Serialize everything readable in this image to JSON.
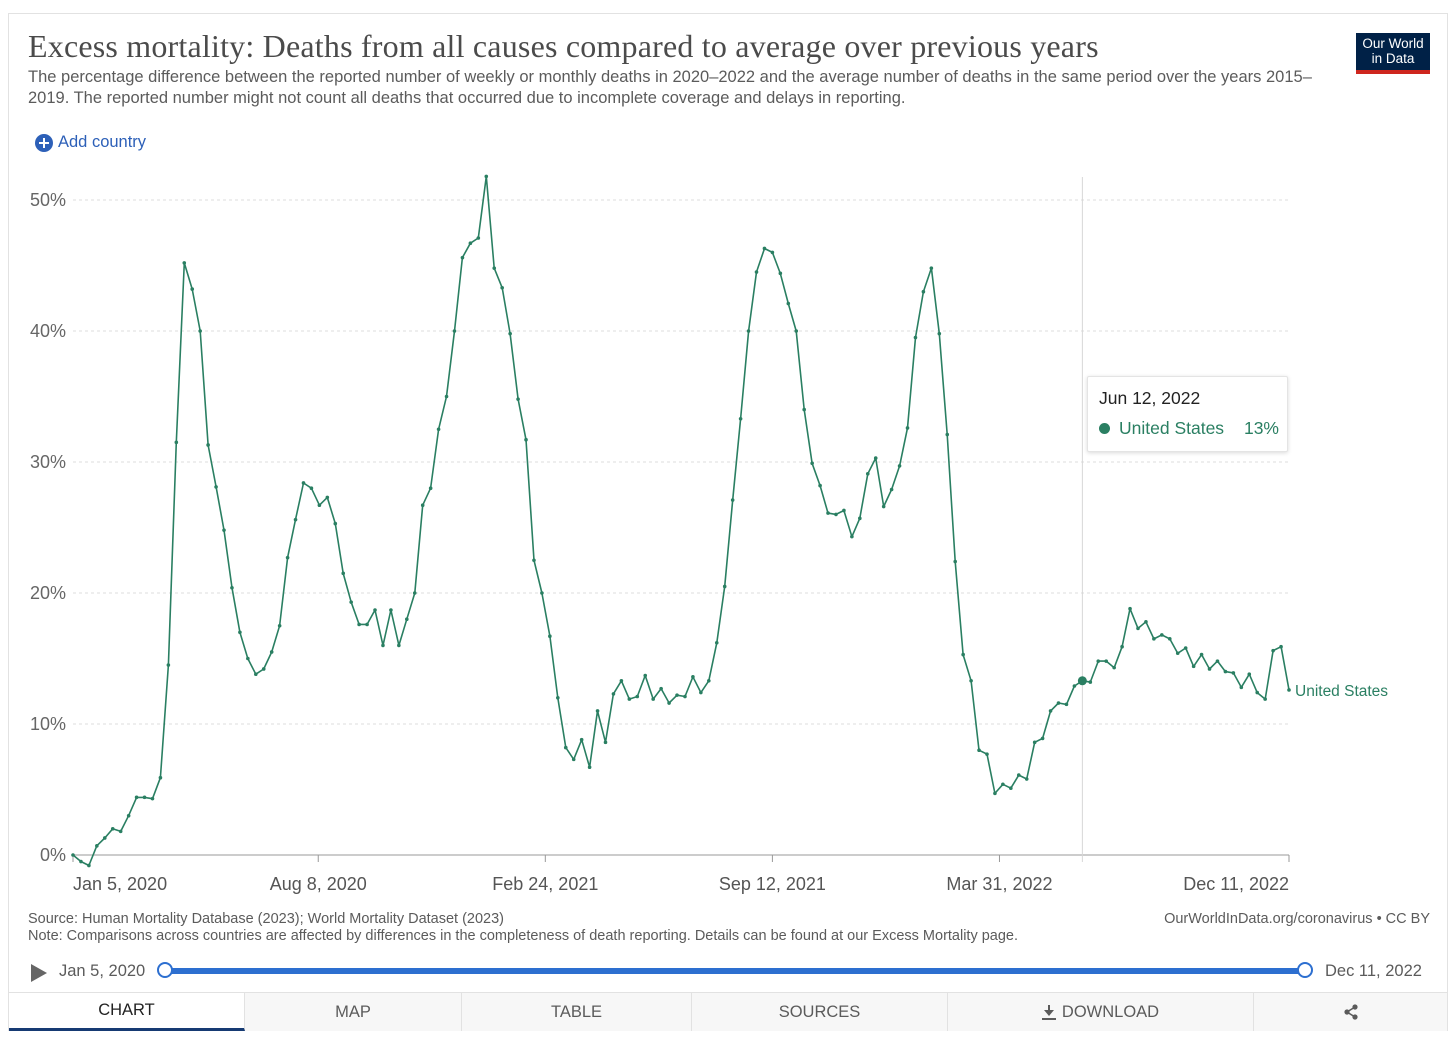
{
  "header": {
    "title": "Excess mortality: Deaths from all causes compared to average over previous years",
    "subtitle": "The percentage difference between the reported number of weekly or monthly deaths in 2020–2022 and the average number of deaths in the same period over the years 2015–2019. The reported number might not count all deaths that occurred due to incomplete coverage and delays in reporting.",
    "logo_line1": "Our World",
    "logo_line2": "in Data"
  },
  "controls": {
    "add_country": "Add country"
  },
  "colors": {
    "series": "#2a7f62",
    "accent": "#2d60b8",
    "logo_bg": "#002147",
    "logo_bar": "#ce261e"
  },
  "tooltip": {
    "date": "Jun 12, 2022",
    "series": "United States",
    "value": "13%"
  },
  "footer": {
    "source": "Source: Human Mortality Database (2023); World Mortality Dataset (2023)",
    "note": "Note: Comparisons across countries are affected by differences in the completeness of death reporting. Details can be found at our Excess Mortality page.",
    "link": "OurWorldInData.org/coronavirus • CC BY"
  },
  "timeline": {
    "start": "Jan 5, 2020",
    "end": "Dec 11, 2022"
  },
  "tabs": [
    {
      "label": "CHART",
      "active": true
    },
    {
      "label": "MAP"
    },
    {
      "label": "TABLE"
    },
    {
      "label": "SOURCES"
    },
    {
      "label": "DOWNLOAD",
      "icon": "download-icon"
    },
    {
      "label": "",
      "icon": "share-icon"
    }
  ],
  "chart_data": {
    "type": "line",
    "x_start": "2020-01-05",
    "x_step_days": 7,
    "x_tick_labels": [
      "Jan 5, 2020",
      "Aug 8, 2020",
      "Feb 24, 2021",
      "Sep 12, 2021",
      "Mar 31, 2022",
      "Dec 11, 2022"
    ],
    "x_tick_dates": [
      "2020-01-05",
      "2020-08-08",
      "2021-02-24",
      "2021-09-12",
      "2022-03-31",
      "2022-12-11"
    ],
    "y_ticks": [
      0,
      10,
      20,
      30,
      40,
      50
    ],
    "y_tick_labels": [
      "0%",
      "10%",
      "20%",
      "30%",
      "40%",
      "50%"
    ],
    "ylim": [
      0,
      50
    ],
    "grid": "horizontal-dashed",
    "highlight_date": "2022-06-12",
    "series": [
      {
        "name": "United States",
        "color": "#2a7f62",
        "values": [
          0,
          -0.5,
          -0.8,
          0.7,
          1.3,
          2.0,
          1.8,
          3.0,
          4.4,
          4.4,
          4.3,
          5.9,
          14.5,
          31.5,
          45.2,
          43.2,
          40.0,
          31.3,
          28.1,
          24.8,
          20.4,
          17.0,
          15.0,
          13.8,
          14.2,
          15.5,
          17.5,
          22.7,
          25.6,
          28.4,
          28.0,
          26.7,
          27.3,
          25.3,
          21.5,
          19.3,
          17.6,
          17.6,
          18.7,
          16.0,
          18.7,
          16.0,
          18.0,
          20.0,
          26.7,
          28.0,
          32.5,
          35.0,
          40.0,
          45.6,
          46.7,
          47.1,
          51.8,
          44.8,
          43.3,
          39.8,
          34.8,
          31.7,
          22.5,
          20.0,
          16.7,
          12.0,
          8.2,
          7.3,
          8.8,
          6.7,
          11.0,
          8.6,
          12.3,
          13.3,
          11.9,
          12.1,
          13.7,
          11.9,
          12.7,
          11.6,
          12.2,
          12.1,
          13.6,
          12.4,
          13.3,
          16.2,
          20.5,
          27.1,
          33.3,
          40.0,
          44.5,
          46.3,
          46.0,
          44.4,
          42.1,
          40.0,
          34.0,
          29.9,
          28.2,
          26.1,
          26.0,
          26.3,
          24.3,
          25.7,
          29.1,
          30.3,
          26.6,
          27.9,
          29.7,
          32.6,
          39.5,
          43.0,
          44.8,
          39.8,
          32.1,
          22.4,
          15.3,
          13.3,
          8.0,
          7.7,
          4.7,
          5.4,
          5.1,
          6.1,
          5.8,
          8.6,
          8.9,
          11.0,
          11.6,
          11.5,
          12.9,
          13.3,
          13.2,
          14.8,
          14.8,
          14.3,
          15.9,
          18.8,
          17.3,
          17.8,
          16.5,
          16.8,
          16.5,
          15.4,
          15.8,
          14.4,
          15.3,
          14.2,
          14.8,
          14.0,
          13.9,
          12.8,
          13.8,
          12.4,
          11.9,
          15.6,
          15.9,
          12.6
        ]
      }
    ],
    "series_label": "United States"
  }
}
